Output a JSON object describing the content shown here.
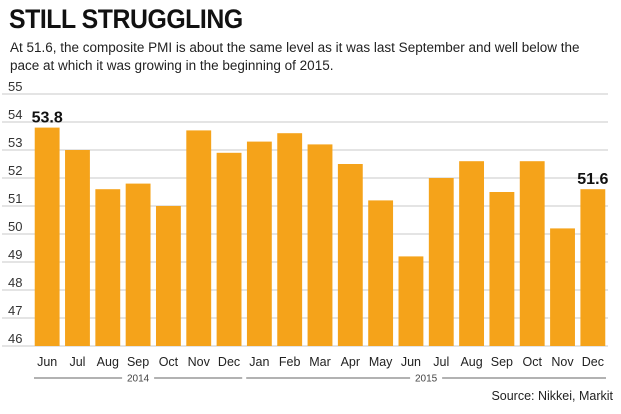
{
  "header": {
    "title": "STILL STRUGGLING",
    "subtitle": "At 51.6, the composite PMI is about the same level as it was last September and well below the pace at which it was growing in the beginning of 2015."
  },
  "footer": {
    "source": "Source: Nikkei, Markit"
  },
  "chart_data": {
    "type": "bar",
    "categories": [
      "Jun",
      "Jul",
      "Aug",
      "Sep",
      "Oct",
      "Nov",
      "Dec",
      "Jan",
      "Feb",
      "Mar",
      "Apr",
      "May",
      "Jun",
      "Jul",
      "Aug",
      "Sep",
      "Oct",
      "Nov",
      "Dec"
    ],
    "values": [
      53.8,
      53.0,
      51.6,
      51.8,
      51.0,
      53.7,
      52.9,
      53.3,
      53.6,
      53.2,
      52.5,
      51.2,
      49.2,
      52.0,
      52.6,
      51.5,
      52.6,
      50.2,
      51.6
    ],
    "year_groups": [
      {
        "label": "2014",
        "start": 0,
        "end": 6
      },
      {
        "label": "2015",
        "start": 7,
        "end": 18
      }
    ],
    "data_labels": [
      {
        "index": 0,
        "text": "53.8"
      },
      {
        "index": 18,
        "text": "51.6"
      }
    ],
    "ylim": [
      46,
      55
    ],
    "yticks": [
      46,
      47,
      48,
      49,
      50,
      51,
      52,
      53,
      54,
      55
    ],
    "grid": true,
    "bar_color": "#f5a31a",
    "grid_color": "#c8c8c8",
    "xlabel": "",
    "ylabel": ""
  }
}
